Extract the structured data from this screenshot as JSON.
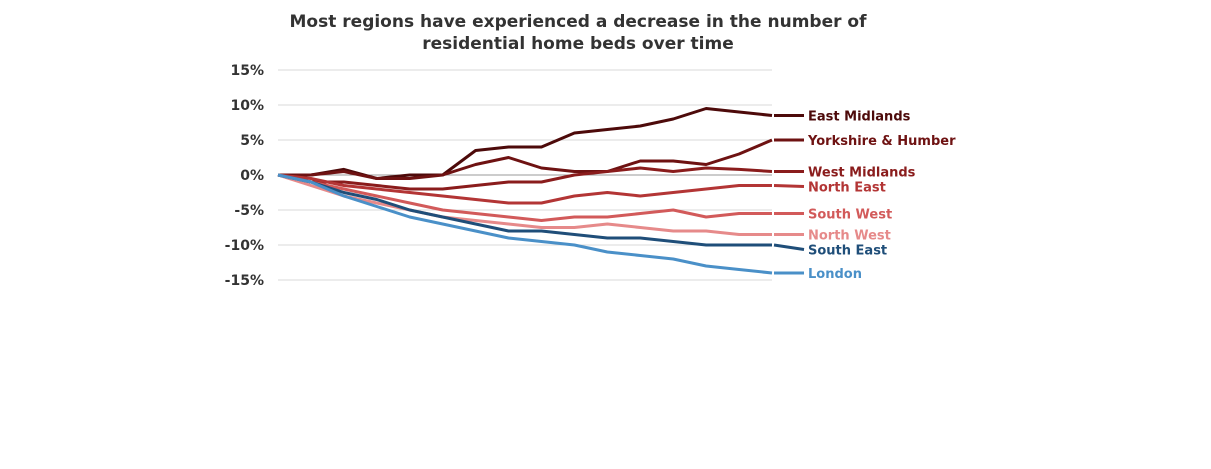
{
  "title_lines": [
    "Most regions have experienced a decrease in the number of",
    "residential home beds over time"
  ],
  "chart_data": {
    "type": "line",
    "title": "Most regions have experienced a decrease in the number of residential home beds over time",
    "xlabel": "",
    "ylabel": "",
    "ylim": [
      -15,
      15
    ],
    "yticks": [
      -15,
      -10,
      -5,
      0,
      5,
      10,
      15
    ],
    "ytick_labels": [
      "-15%",
      "-10%",
      "-5%",
      "0%",
      "5%",
      "10%",
      "15%"
    ],
    "x": [
      0,
      1,
      2,
      3,
      4,
      5,
      6,
      7,
      8,
      9,
      10,
      11,
      12,
      13,
      14,
      15
    ],
    "series": [
      {
        "name": "East Midlands",
        "color": "#4d0a0a",
        "values": [
          0,
          0,
          0.8,
          -0.5,
          0,
          0,
          3.5,
          4,
          4,
          6,
          6.5,
          7,
          8,
          9.5,
          9,
          8.5
        ]
      },
      {
        "name": "Yorkshire & Humber",
        "color": "#6e1212",
        "values": [
          0,
          0,
          0.5,
          -0.5,
          -0.5,
          0,
          1.5,
          2.5,
          1,
          0.5,
          0.5,
          2,
          2,
          1.5,
          3,
          5
        ]
      },
      {
        "name": "West Midlands",
        "color": "#8a1c1c",
        "values": [
          0,
          -1,
          -1,
          -1.5,
          -2,
          -2,
          -1.5,
          -1,
          -1,
          0,
          0.5,
          1,
          0.5,
          1,
          0.8,
          0.5
        ]
      },
      {
        "name": "North East",
        "color": "#b33535",
        "values": [
          0,
          -0.5,
          -1.5,
          -2,
          -2.5,
          -3,
          -3.5,
          -4,
          -4,
          -3,
          -2.5,
          -3,
          -2.5,
          -2,
          -1.5,
          -1.5
        ]
      },
      {
        "name": "South West",
        "color": "#d25a5a",
        "values": [
          0,
          -1,
          -2,
          -3,
          -4,
          -5,
          -5.5,
          -6,
          -6.5,
          -6,
          -6,
          -5.5,
          -5,
          -6,
          -5.5,
          -5.5
        ]
      },
      {
        "name": "North West",
        "color": "#e68a8a",
        "values": [
          0,
          -1.5,
          -3,
          -4,
          -5,
          -6,
          -6.5,
          -7,
          -7.5,
          -7.5,
          -7,
          -7.5,
          -8,
          -8,
          -8.5,
          -8.5
        ]
      },
      {
        "name": "South East",
        "color": "#1f4e79",
        "values": [
          0,
          -1,
          -2.5,
          -3.5,
          -5,
          -6,
          -7,
          -8,
          -8,
          -8.5,
          -9,
          -9,
          -9.5,
          -10,
          -10,
          -10
        ]
      },
      {
        "name": "London",
        "color": "#4a90c8",
        "values": [
          0,
          -1,
          -3,
          -4.5,
          -6,
          -7,
          -8,
          -9,
          -9.5,
          -10,
          -11,
          -11.5,
          -12,
          -13,
          -13.5,
          -14
        ]
      }
    ]
  }
}
